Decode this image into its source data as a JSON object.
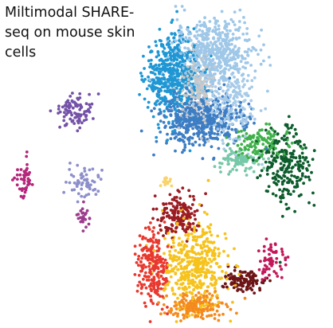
{
  "chart_data": {
    "type": "scatter",
    "title": "Miltimodal SHARE-\nseq on mouse skin\ncells",
    "xlabel": "",
    "ylabel": "",
    "axes_visible": false,
    "grid": false,
    "legend": "none",
    "point_marker": "dot",
    "background": "#ffffff",
    "xlim": [
      0,
      100
    ],
    "ylim": [
      0,
      100
    ],
    "clusters": [
      {
        "cx": 52.0,
        "cy": 78.0,
        "sx": 4.2,
        "sy": 6.5,
        "n": 520,
        "color": "#1f97d4"
      },
      {
        "cx": 65.0,
        "cy": 85.0,
        "sx": 6.0,
        "sy": 5.5,
        "n": 560,
        "color": "#9ec7e8"
      },
      {
        "cx": 61.0,
        "cy": 64.0,
        "sx": 6.5,
        "sy": 4.0,
        "n": 520,
        "color": "#3d7dc4"
      },
      {
        "cx": 59.0,
        "cy": 74.0,
        "sx": 3.0,
        "sy": 6.0,
        "n": 220,
        "color": "#c8c8c8"
      },
      {
        "cx": 70.0,
        "cy": 68.0,
        "sx": 4.0,
        "sy": 6.0,
        "n": 200,
        "color": "#a7cbe9"
      },
      {
        "cx": 73.5,
        "cy": 51.0,
        "sx": 3.2,
        "sy": 2.0,
        "n": 90,
        "color": "#76c8a8"
      },
      {
        "cx": 80.0,
        "cy": 56.5,
        "sx": 4.5,
        "sy": 2.5,
        "n": 120,
        "color": "#3fb04a"
      },
      {
        "cx": 88.0,
        "cy": 50.0,
        "sx": 3.6,
        "sy": 6.5,
        "n": 230,
        "color": "#0c5c2c"
      },
      {
        "cx": 22.0,
        "cy": 67.0,
        "sx": 2.8,
        "sy": 2.6,
        "n": 95,
        "color": "#7452a8"
      },
      {
        "cx": 5.5,
        "cy": 45.0,
        "sx": 1.5,
        "sy": 3.5,
        "n": 45,
        "color": "#b5257a"
      },
      {
        "cx": 24.0,
        "cy": 44.0,
        "sx": 3.0,
        "sy": 2.0,
        "n": 60,
        "color": "#8d8fcb"
      },
      {
        "cx": 24.0,
        "cy": 33.0,
        "sx": 1.0,
        "sy": 2.5,
        "n": 25,
        "color": "#9c3c8c"
      },
      {
        "cx": 54.5,
        "cy": 34.0,
        "sx": 3.2,
        "sy": 3.2,
        "n": 170,
        "color": "#9b1c23"
      },
      {
        "cx": 59.0,
        "cy": 18.0,
        "sx": 5.0,
        "sy": 7.0,
        "n": 430,
        "color": "#f6c21c"
      },
      {
        "cx": 46.0,
        "cy": 17.0,
        "sx": 2.5,
        "sy": 6.0,
        "n": 220,
        "color": "#e8392f"
      },
      {
        "cx": 60.0,
        "cy": 5.0,
        "sx": 4.5,
        "sy": 2.0,
        "n": 180,
        "color": "#f48a1e"
      },
      {
        "cx": 75.0,
        "cy": 13.0,
        "sx": 3.0,
        "sy": 2.0,
        "n": 110,
        "color": "#6c1416"
      },
      {
        "cx": 83.0,
        "cy": 19.0,
        "sx": 1.8,
        "sy": 2.4,
        "n": 60,
        "color": "#c2185b"
      },
      {
        "cx": 50.5,
        "cy": 44.5,
        "sx": 1.0,
        "sy": 0.8,
        "n": 18,
        "color": "#f9d36b"
      }
    ]
  }
}
